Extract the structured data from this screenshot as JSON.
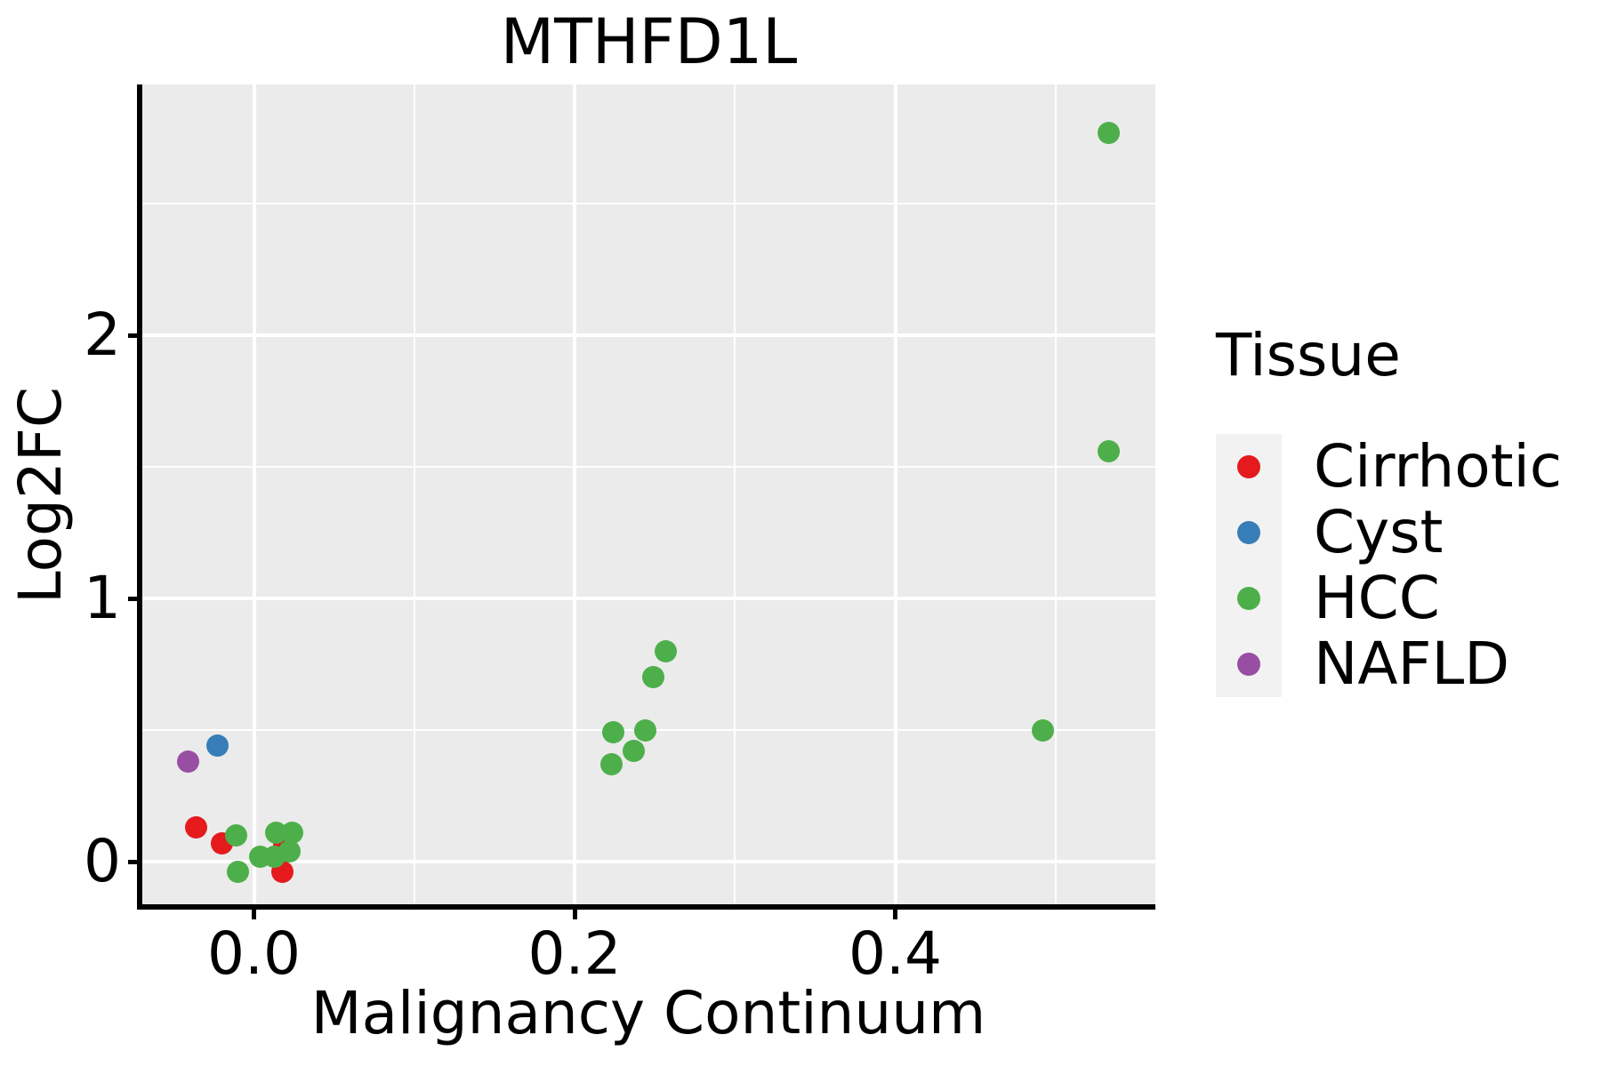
{
  "title": "MTHFD1L",
  "x_axis": {
    "label": "Malignancy Continuum",
    "ticks": [
      {
        "v": 0.0,
        "label": "0.0"
      },
      {
        "v": 0.2,
        "label": "0.2"
      },
      {
        "v": 0.4,
        "label": "0.4"
      }
    ]
  },
  "y_axis": {
    "label": "Log2FC",
    "ticks": [
      {
        "v": 0,
        "label": "0"
      },
      {
        "v": 1,
        "label": "1"
      },
      {
        "v": 2,
        "label": "2"
      }
    ]
  },
  "legend": {
    "title": "Tissue",
    "items": [
      {
        "label": "Cirrhotic",
        "color": "#E41A1C"
      },
      {
        "label": "Cyst",
        "color": "#377EB8"
      },
      {
        "label": "HCC",
        "color": "#4DAF4A"
      },
      {
        "label": "NAFLD",
        "color": "#984EA3"
      }
    ]
  },
  "style": {
    "panel_bg": "#EBEBEB",
    "grid_color": "#FFFFFF",
    "legend_key_bg": "#F2F2F2",
    "axis_color": "#000000",
    "text_color": "#000000"
  },
  "chart_data": {
    "type": "scatter",
    "title": "MTHFD1L",
    "xlabel": "Malignancy Continuum",
    "ylabel": "Log2FC",
    "xlim": [
      -0.071,
      0.563
    ],
    "ylim": [
      -0.172,
      2.953
    ],
    "x_major_breaks": [
      0.0,
      0.2,
      0.4
    ],
    "x_minor_breaks": [
      0.1,
      0.3,
      0.5
    ],
    "y_major_breaks": [
      0,
      1,
      2
    ],
    "y_minor_breaks": [
      0.5,
      1.5,
      2.5
    ],
    "grid": true,
    "legend_position": "right",
    "legend_title": "Tissue",
    "series": [
      {
        "name": "Cirrhotic",
        "color": "#E41A1C",
        "points": [
          [
            -0.036,
            0.13
          ],
          [
            -0.02,
            0.07
          ],
          [
            0.019,
            0.07
          ],
          [
            0.018,
            -0.04
          ]
        ]
      },
      {
        "name": "Cyst",
        "color": "#377EB8",
        "points": [
          [
            -0.023,
            0.44
          ]
        ]
      },
      {
        "name": "NAFLD",
        "color": "#984EA3",
        "points": [
          [
            -0.041,
            0.38
          ]
        ]
      },
      {
        "name": "HCC",
        "color": "#4DAF4A",
        "points": [
          [
            -0.011,
            0.1
          ],
          [
            -0.01,
            -0.04
          ],
          [
            0.004,
            0.02
          ],
          [
            0.013,
            0.02
          ],
          [
            0.022,
            0.04
          ],
          [
            0.014,
            0.11
          ],
          [
            0.024,
            0.11
          ],
          [
            0.223,
            0.37
          ],
          [
            0.224,
            0.49
          ],
          [
            0.244,
            0.5
          ],
          [
            0.237,
            0.42
          ],
          [
            0.249,
            0.7
          ],
          [
            0.257,
            0.8
          ],
          [
            0.492,
            0.5
          ],
          [
            0.533,
            1.56
          ],
          [
            0.533,
            2.77
          ]
        ]
      }
    ]
  }
}
